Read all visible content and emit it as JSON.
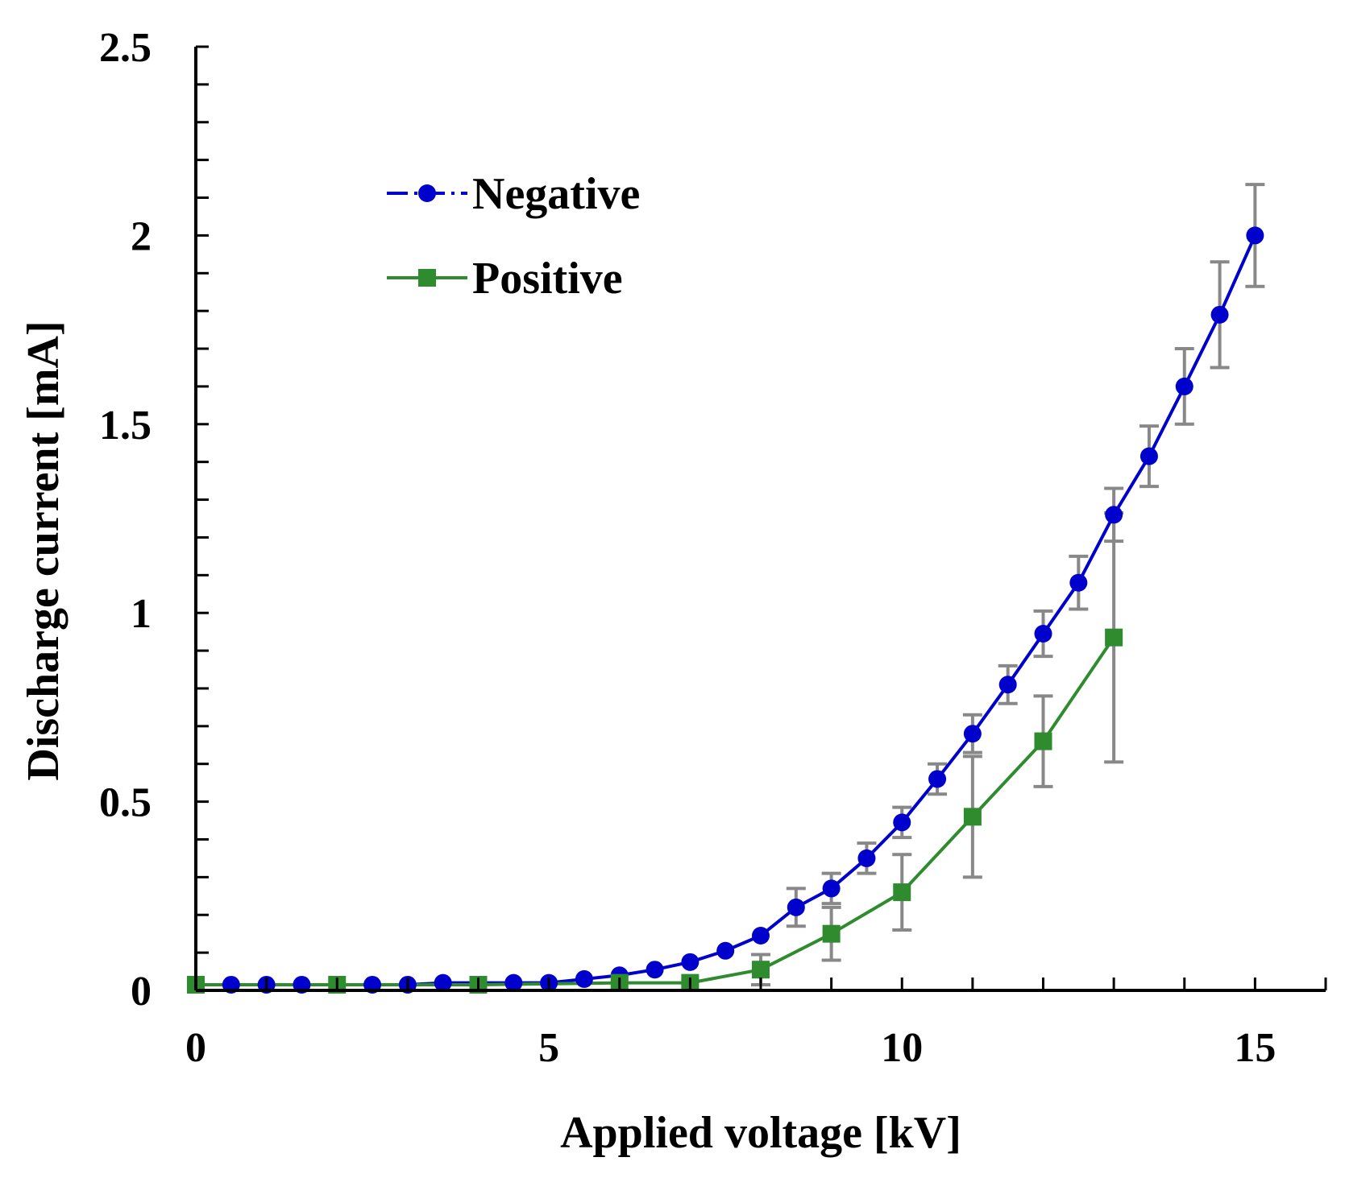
{
  "chart_data": {
    "type": "line",
    "title": "",
    "xlabel": "Applied voltage [kV]",
    "ylabel": "Discharge current [mA]",
    "xlim": [
      0,
      16
    ],
    "ylim": [
      0,
      2.5
    ],
    "x_ticks": [
      0,
      5,
      10,
      15
    ],
    "x_tick_labels": [
      "0",
      "5",
      "10",
      "15"
    ],
    "y_ticks": [
      0,
      0.5,
      1,
      1.5,
      2,
      2.5
    ],
    "y_tick_labels": [
      "0",
      "0.5",
      "1",
      "1.5",
      "2",
      "2.5"
    ],
    "y_minor_step": 0.1,
    "grid": false,
    "legend_position": "top-left",
    "series": [
      {
        "name": "Negative",
        "color": "#0000cc",
        "marker": "circle",
        "x": [
          0.5,
          1,
          1.5,
          2.5,
          3,
          3.5,
          4.5,
          5,
          5.5,
          6,
          6.5,
          7,
          7.5,
          8,
          8.5,
          9,
          9.5,
          10,
          10.5,
          11,
          11.5,
          12,
          12.5,
          13,
          13.5,
          14,
          14.5,
          15
        ],
        "y": [
          0.015,
          0.015,
          0.015,
          0.015,
          0.015,
          0.02,
          0.02,
          0.02,
          0.03,
          0.04,
          0.055,
          0.075,
          0.105,
          0.145,
          0.22,
          0.27,
          0.35,
          0.445,
          0.56,
          0.68,
          0.81,
          0.945,
          1.08,
          1.26,
          1.415,
          1.6,
          1.79,
          2.0
        ],
        "error": [
          0,
          0,
          0,
          0,
          0,
          0,
          0,
          0,
          0,
          0,
          0,
          0,
          0,
          0,
          0.05,
          0.04,
          0.04,
          0.04,
          0.04,
          0.05,
          0.05,
          0.06,
          0.07,
          0.07,
          0.08,
          0.1,
          0.14,
          0.135
        ]
      },
      {
        "name": "Positive",
        "color": "#2e8b2e",
        "marker": "square",
        "x": [
          0,
          2,
          4,
          6,
          7,
          8,
          9,
          10,
          11,
          12,
          13
        ],
        "y": [
          0.015,
          0.015,
          0.015,
          0.02,
          0.02,
          0.055,
          0.15,
          0.26,
          0.46,
          0.66,
          0.935
        ],
        "error": [
          0,
          0,
          0,
          0,
          0,
          0.04,
          0.07,
          0.1,
          0.16,
          0.12,
          0.33
        ]
      }
    ]
  }
}
